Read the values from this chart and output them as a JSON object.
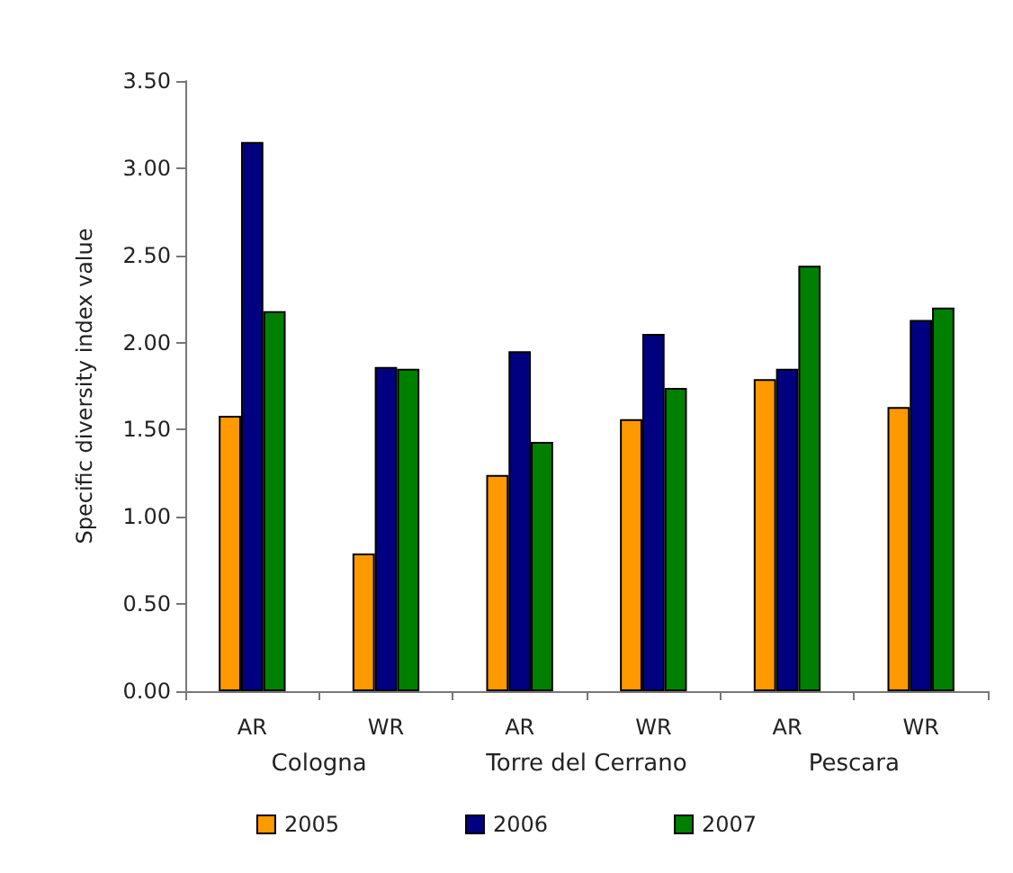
{
  "chart_data": {
    "type": "bar",
    "ylabel": "Specific diversity index value",
    "categories": [
      "AR",
      "WR",
      "AR",
      "WR",
      "AR",
      "WR"
    ],
    "annotations": [
      "Cologna",
      "Torre del Cerrano",
      "Pescara"
    ],
    "series": [
      {
        "name": "2005",
        "color": "#ff9900",
        "values": [
          1.58,
          0.79,
          1.24,
          1.56,
          1.79,
          1.63
        ]
      },
      {
        "name": "2006",
        "color": "#000080",
        "values": [
          3.15,
          1.86,
          1.95,
          2.05,
          1.85,
          2.13
        ]
      },
      {
        "name": "2007",
        "color": "#008000",
        "values": [
          2.18,
          1.85,
          1.43,
          1.74,
          2.44,
          2.2
        ]
      }
    ],
    "ylim": [
      0,
      3.5
    ],
    "yticks": [
      {
        "value": 0,
        "label": "0.00"
      },
      {
        "value": 0.5,
        "label": "0.50"
      },
      {
        "value": 1,
        "label": "1.00"
      },
      {
        "value": 1.5,
        "label": "1.50"
      },
      {
        "value": 2,
        "label": "2.00"
      },
      {
        "value": 2.5,
        "label": "2.50"
      },
      {
        "value": 3,
        "label": "3.00"
      },
      {
        "value": 3.5,
        "label": "3.50"
      }
    ],
    "grid": false,
    "legend": "bottom"
  }
}
